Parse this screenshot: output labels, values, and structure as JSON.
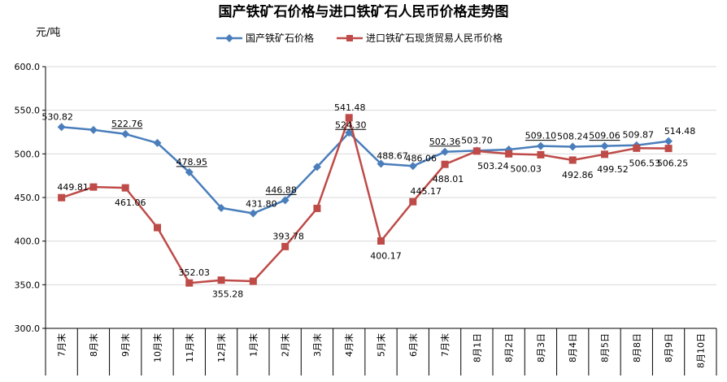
{
  "chart_data": {
    "type": "line",
    "title": "国产铁矿石价格与进口铁矿石人民币价格走势图",
    "ylabel": "元/吨",
    "ylim": [
      300,
      600
    ],
    "yticks": [
      "300.0",
      "350.0",
      "400.0",
      "450.0",
      "500.0",
      "550.0",
      "600.0"
    ],
    "grid": true,
    "legend_position": "top-center",
    "categories": [
      "7月末",
      "8月末",
      "9月末",
      "10月末",
      "11月末",
      "12月末",
      "1月末",
      "2月末",
      "3月末",
      "4月末",
      "5月末",
      "6月末",
      "7月末",
      "8月1日",
      "8月2日",
      "8月3日",
      "8月4日",
      "8月5日",
      "8月8日",
      "8月9日",
      "8月10日"
    ],
    "series": [
      {
        "name": "国产铁矿石价格",
        "color": "#4a7ebb",
        "marker": "diamond",
        "values": [
          530.82,
          527.5,
          522.76,
          512.5,
          478.95,
          438.0,
          431.8,
          446.88,
          485.0,
          524.3,
          488.67,
          486.06,
          502.36,
          503.7,
          505.0,
          509.1,
          508.24,
          509.06,
          509.87,
          514.48,
          null
        ],
        "labels": [
          "530.82",
          "",
          "522.76",
          "",
          "478.95",
          "",
          "431.80",
          "446.88",
          "",
          "524.30",
          "488.67",
          "486.06",
          "502.36",
          "503.70",
          "",
          "509.10",
          "508.24",
          "509.06",
          "509.87",
          "514.48",
          ""
        ]
      },
      {
        "name": "进口铁矿石现货贸易人民币价格",
        "color": "#be4b48",
        "marker": "square",
        "values": [
          449.81,
          462.0,
          461.06,
          415.5,
          352.03,
          355.28,
          354.0,
          393.78,
          437.5,
          541.48,
          400.17,
          445.17,
          488.01,
          503.24,
          500.03,
          499.0,
          492.86,
          499.52,
          506.53,
          506.25,
          null
        ],
        "labels": [
          "449.81",
          "",
          "461.06",
          "",
          "352.03",
          "355.28",
          "",
          "393.78",
          "",
          "541.48",
          "400.17",
          "445.17",
          "488.01",
          "503.24",
          "500.03",
          "",
          "492.86",
          "499.52",
          "506.53",
          "506.25",
          ""
        ]
      }
    ]
  }
}
